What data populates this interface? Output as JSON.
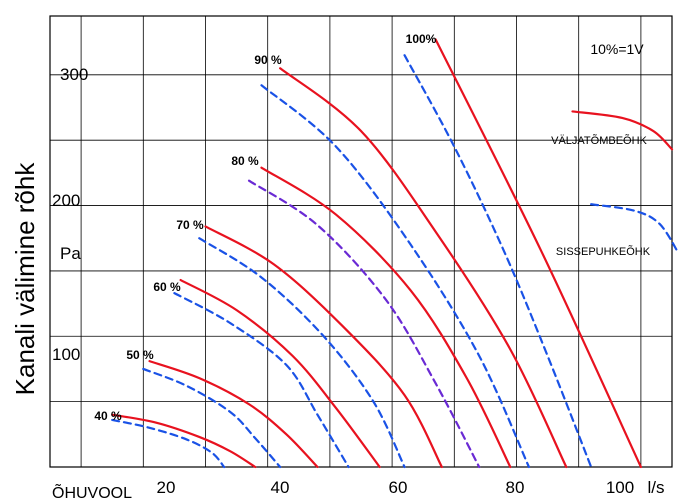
{
  "chart_data": {
    "type": "line",
    "ylabel": "Kanali välimine rõhk",
    "y_unit": "Pa",
    "x_axis_name": "ÕHUVOOL",
    "x_unit": "l/s",
    "xlim": [
      5,
      105
    ],
    "ylim": [
      0,
      345
    ],
    "x_ticks": [
      20,
      40,
      60,
      80,
      100
    ],
    "y_ticks": [
      100,
      200,
      300
    ],
    "grid": true,
    "annotations": {
      "voltage_note": "10%=1V",
      "exhaust_label": "VÄLJATÕMBEÕHK",
      "supply_label": "SISSEPUHKEÕHK"
    },
    "curve_labels": [
      "40 %",
      "50 %",
      "60 %",
      "70 %",
      "80 %",
      "90 %",
      "100%"
    ],
    "series": [
      {
        "level": "40 %",
        "kind": "exhaust",
        "x": [
          15,
          22,
          29,
          34,
          38
        ],
        "y": [
          40,
          34,
          23,
          12,
          0
        ]
      },
      {
        "level": "40 %",
        "kind": "supply",
        "x": [
          15,
          21,
          27,
          31,
          33
        ],
        "y": [
          36,
          30,
          21,
          11,
          0
        ]
      },
      {
        "level": "50 %",
        "kind": "exhaust",
        "x": [
          21,
          29,
          37,
          43,
          48
        ],
        "y": [
          81,
          68,
          48,
          25,
          0
        ]
      },
      {
        "level": "50 %",
        "kind": "supply",
        "x": [
          20,
          27,
          34,
          38,
          42
        ],
        "y": [
          75,
          62,
          42,
          22,
          0
        ]
      },
      {
        "level": "60 %",
        "kind": "exhaust",
        "x": [
          26,
          35,
          44,
          51,
          58
        ],
        "y": [
          143,
          120,
          85,
          45,
          0
        ]
      },
      {
        "level": "60 %",
        "kind": "supply",
        "x": [
          25,
          34,
          43,
          48,
          53
        ],
        "y": [
          133,
          110,
          78,
          40,
          0
        ]
      },
      {
        "level": "70 %",
        "kind": "exhaust",
        "x": [
          30,
          41,
          52,
          62,
          68
        ],
        "y": [
          184,
          155,
          108,
          55,
          0
        ]
      },
      {
        "level": "70 %",
        "kind": "supply",
        "x": [
          29,
          39,
          49,
          57,
          62
        ],
        "y": [
          175,
          145,
          100,
          50,
          0
        ]
      },
      {
        "level": "80 %",
        "kind": "exhaust",
        "x": [
          39,
          51,
          63,
          72,
          79
        ],
        "y": [
          229,
          193,
          135,
          68,
          0
        ]
      },
      {
        "level": "80 %",
        "kind": "supply",
        "x": [
          37,
          48,
          59,
          67,
          74
        ],
        "y": [
          219,
          185,
          128,
          64,
          0
        ]
      },
      {
        "level": "90 %",
        "kind": "exhaust",
        "x": [
          42,
          55,
          67,
          79,
          88
        ],
        "y": [
          305,
          257,
          180,
          90,
          0
        ]
      },
      {
        "level": "90 %",
        "kind": "supply",
        "x": [
          39,
          51,
          63,
          74,
          82
        ],
        "y": [
          292,
          245,
          170,
          85,
          0
        ]
      },
      {
        "level": "100%",
        "kind": "exhaust",
        "x": [
          67,
          84,
          100
        ],
        "y": [
          327,
          165,
          0
        ]
      },
      {
        "level": "100%",
        "kind": "supply",
        "x": [
          62,
          70,
          78,
          85,
          92
        ],
        "y": [
          315,
          245,
          165,
          85,
          0
        ]
      },
      {
        "level": "legend",
        "kind": "exhaust",
        "x": [
          89,
          97,
          102,
          105
        ],
        "y": [
          272,
          267,
          257,
          243
        ]
      },
      {
        "level": "legend",
        "kind": "supply",
        "x": [
          92,
          99,
          103,
          106
        ],
        "y": [
          201,
          196,
          186,
          164
        ]
      }
    ]
  }
}
